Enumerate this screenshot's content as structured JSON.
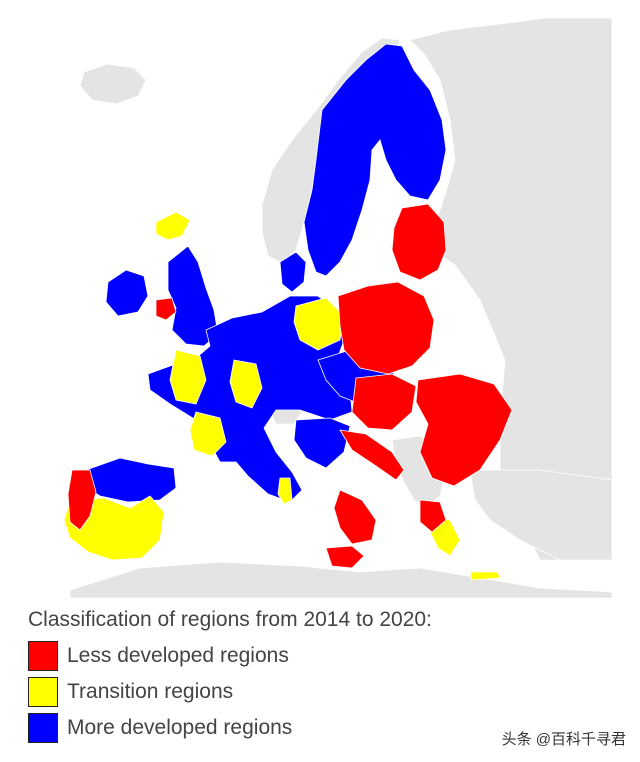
{
  "colors": {
    "less_developed": "#ff0000",
    "transition": "#ffff00",
    "more_developed": "#0000ff",
    "non_eu_land": "#e4e4e4",
    "sea": "#ffffff",
    "borders": "#ffffff"
  },
  "legend": {
    "title": "Classification of regions from 2014 to 2020:",
    "items": [
      {
        "label": "Less developed regions",
        "color": "#ff0000"
      },
      {
        "label": "Transition regions",
        "color": "#ffff00"
      },
      {
        "label": "More developed regions",
        "color": "#0000ff"
      }
    ]
  },
  "watermark": "头条 @百科千寻君"
}
